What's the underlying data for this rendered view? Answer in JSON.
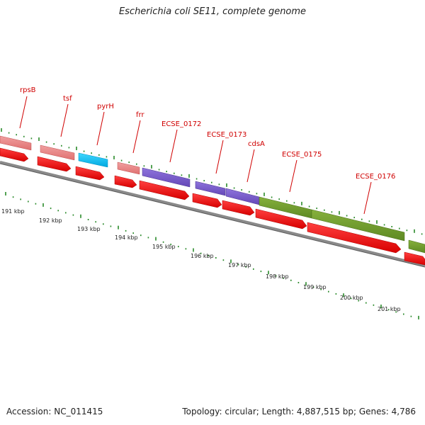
{
  "title": "Escherichia coli SE11, complete genome",
  "footer": {
    "accession": "Accession: NC_011415",
    "topology": "Topology: circular; Length: 4,887,515 bp; Genes: 4,786"
  },
  "colors": {
    "label_red": "#d00000",
    "cds_red": "#ff0000",
    "rna_pink": "#e98080",
    "blue": "#00bff0",
    "purple": "#7a5cc8",
    "olive": "#6f9a2e",
    "tick_green": "#2a8a2a",
    "backbone": "#808080"
  },
  "gene_labels": [
    "rpsB",
    "tsf",
    "pyrH",
    "frr",
    "ECSE_0172",
    "ECSE_0173",
    "cdsA",
    "ECSE_0175",
    "ECSE_0176"
  ],
  "kbp_labels": [
    "191 kbp",
    "192 kbp",
    "193 kbp",
    "194 kbp",
    "195 kbp",
    "196 kbp",
    "197 kbp",
    "198 kbp",
    "199 kbp",
    "200 kbp",
    "201 kbp"
  ]
}
